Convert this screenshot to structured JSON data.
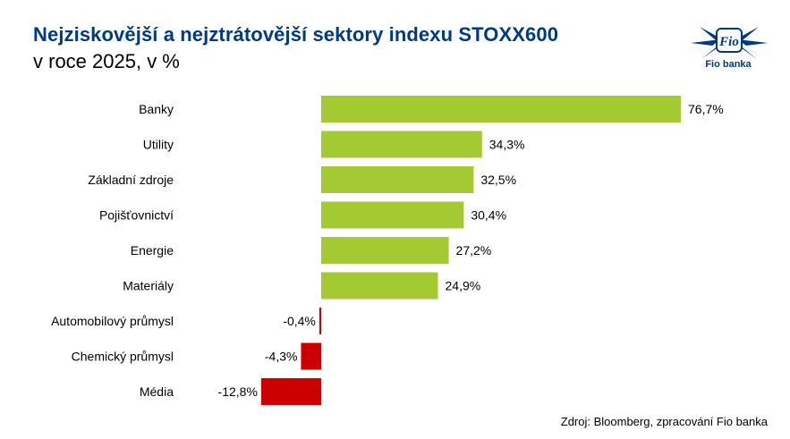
{
  "header": {
    "title": "Nejziskovější a nejztrátovější sektory indexu STOXX600",
    "subtitle": "v roce 2025, v %"
  },
  "logo": {
    "mark_text": "Fio",
    "caption": "Fio banka"
  },
  "footer": {
    "source": "Zdroj: Bloomberg, zpracování Fio banka"
  },
  "colors": {
    "positive": "#a3c933",
    "negative": "#cc0000",
    "title": "#003a80"
  },
  "chart_data": {
    "type": "bar",
    "orientation": "horizontal",
    "title": "Nejziskovější a nejztrátovější sektory indexu STOXX600",
    "subtitle": "v roce 2025, v %",
    "categories": [
      "Banky",
      "Utility",
      "Základní zdroje",
      "Pojišťovnictví",
      "Energie",
      "Materiály",
      "Automobilový průmysl",
      "Chemický průmysl",
      "Média"
    ],
    "values": [
      76.7,
      34.3,
      32.5,
      30.4,
      27.2,
      24.9,
      -0.4,
      -4.3,
      -12.8
    ],
    "value_labels": [
      "76,7%",
      "34,3%",
      "32,5%",
      "30,4%",
      "27,2%",
      "24,9%",
      "-0,4%",
      "-4,3%",
      "-12,8%"
    ],
    "xlim": [
      -12.8,
      76.7
    ],
    "grid": false,
    "legend": "none"
  }
}
